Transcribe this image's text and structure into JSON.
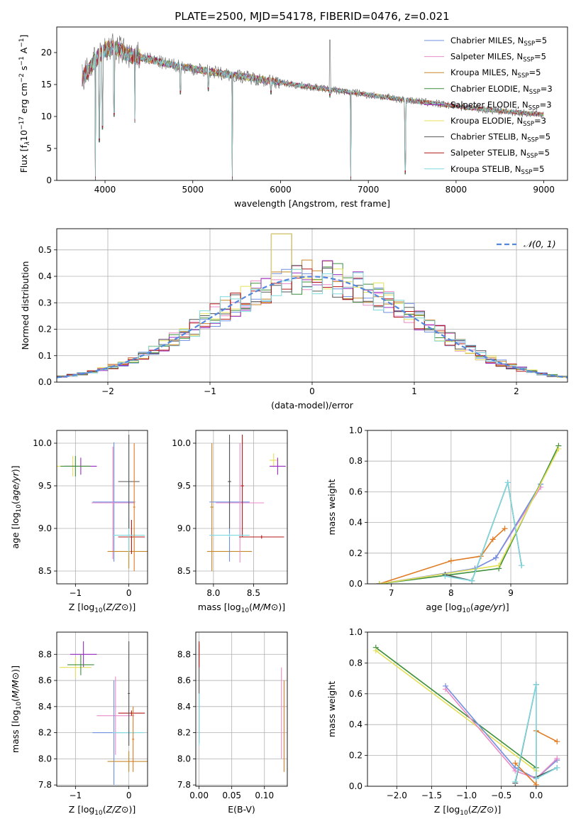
{
  "title": "PLATE=2500, MJD=54178, FIBERID=0476, z=0.021",
  "colors": {
    "Chabrier MILES": "#6f8fe0",
    "Salpeter MILES": "#e98bc8",
    "Kroupa MILES": "#c8892a",
    "Chabrier ELODIE": "#3d8f3d",
    "Salpeter ELODIE": "#9a2bc2",
    "Kroupa ELODIE": "#e5e05a",
    "Chabrier STELIB": "#555555",
    "Salpeter STELIB": "#b01818",
    "Kroupa STELIB": "#7fd9df",
    "orange": "#e07a20",
    "normal": "#5588dd",
    "grid": "#b0b0b0"
  },
  "chart_data": [
    {
      "id": "spectrum",
      "type": "line",
      "xlabel": "wavelength [Angstrom, rest frame]",
      "ylabel_parts": [
        "Flux [f",
        "λ",
        "10",
        "−17",
        " erg cm",
        "−2",
        " s",
        "−1",
        " A",
        "−1",
        "]"
      ],
      "xlim": [
        3450,
        9270
      ],
      "ylim": [
        0,
        24
      ],
      "xticks": [
        4000,
        5000,
        6000,
        7000,
        8000,
        9000
      ],
      "yticks": [
        0,
        5,
        10,
        15,
        20
      ],
      "grid": false,
      "legend_position": "right",
      "legend": [
        {
          "base": "Chabrier MILES, N",
          "sub": "SSP",
          "tail": "=5"
        },
        {
          "base": "Salpeter MILES, N",
          "sub": "SSP",
          "tail": "=5"
        },
        {
          "base": "Kroupa MILES, N",
          "sub": "SSP",
          "tail": "=5"
        },
        {
          "base": "Chabrier ELODIE, N",
          "sub": "SSP",
          "tail": "=3"
        },
        {
          "base": "Salpeter ELODIE, N",
          "sub": "SSP",
          "tail": "=3"
        },
        {
          "base": "Kroupa ELODIE, N",
          "sub": "SSP",
          "tail": "=3"
        },
        {
          "base": "Chabrier STELIB, N",
          "sub": "SSP",
          "tail": "=5"
        },
        {
          "base": "Salpeter STELIB, N",
          "sub": "SSP",
          "tail": "=5"
        },
        {
          "base": "Kroupa STELIB, N",
          "sub": "SSP",
          "tail": "=5"
        }
      ],
      "continuum": [
        [
          3740,
          16
        ],
        [
          3800,
          17
        ],
        [
          3900,
          19
        ],
        [
          4000,
          20.5
        ],
        [
          4100,
          20.8
        ],
        [
          4300,
          19.5
        ],
        [
          4500,
          19
        ],
        [
          4700,
          18.2
        ],
        [
          5000,
          17.5
        ],
        [
          5300,
          16.8
        ],
        [
          5600,
          16.2
        ],
        [
          6000,
          15.3
        ],
        [
          6400,
          14.5
        ],
        [
          6800,
          13.8
        ],
        [
          7200,
          13
        ],
        [
          7600,
          12.3
        ],
        [
          8000,
          11.6
        ],
        [
          8400,
          11
        ],
        [
          8800,
          10.5
        ],
        [
          9000,
          10.3
        ]
      ],
      "dips": [
        [
          3890,
          0
        ],
        [
          3935,
          6
        ],
        [
          3970,
          8
        ],
        [
          4102,
          10
        ],
        [
          4340,
          9
        ],
        [
          4861,
          13.5
        ],
        [
          5175,
          14
        ],
        [
          5450,
          0
        ],
        [
          5890,
          13.5
        ],
        [
          6563,
          13
        ],
        [
          6800,
          0
        ],
        [
          7420,
          1
        ]
      ],
      "spikes": [
        [
          6563,
          22
        ]
      ]
    },
    {
      "id": "residuals",
      "type": "bar",
      "xlabel": "(data-model)/error",
      "ylabel": "Normed distribution",
      "xlim": [
        -2.5,
        2.5
      ],
      "ylim": [
        0,
        0.58
      ],
      "xticks": [
        -2,
        -1,
        0,
        1,
        2
      ],
      "yticks": [
        0.0,
        0.1,
        0.2,
        0.3,
        0.4,
        0.5
      ],
      "grid": true,
      "legend_position": "top-right",
      "normal_label": "𝒩(0, 1)",
      "bin_width": 0.1
    },
    {
      "id": "age-vs-Z",
      "type": "scatter",
      "xlabel": "Z [log10(Z/Z⊙)]",
      "ylabel": "age  [log10(age/yr)]",
      "xlim": [
        -1.35,
        0.35
      ],
      "ylim": [
        8.35,
        10.15
      ],
      "xticks": [
        -1,
        0
      ],
      "yticks": [
        8.5,
        9.0,
        9.5,
        10.0
      ],
      "grid": true,
      "crosses": [
        {
          "series": "Kroupa ELODIE",
          "x": -1.05,
          "y": 9.73,
          "xerr": 0.3,
          "yerr": 0.12
        },
        {
          "series": "Salpeter ELODIE",
          "x": -0.9,
          "y": 9.73,
          "xerr": 0.3,
          "yerr": 0.1
        },
        {
          "series": "Chabrier ELODIE",
          "x": -1.0,
          "y": 9.73,
          "xerr": 0.28,
          "yerr": 0.12
        },
        {
          "series": "Chabrier MILES",
          "x": -0.28,
          "y": 9.31,
          "xerr": 0.4,
          "yerr": 0.7
        },
        {
          "series": "Salpeter MILES",
          "x": -0.3,
          "y": 9.3,
          "xerr": 0.4,
          "yerr": 0.66
        },
        {
          "series": "Kroupa MILES",
          "x": 0.0,
          "y": 8.73,
          "xerr": 0.4,
          "yerr": 0.2
        },
        {
          "series": "Salpeter STELIB",
          "x": 0.05,
          "y": 8.9,
          "xerr": 0.25,
          "yerr": 0.2
        },
        {
          "series": "Kroupa STELIB",
          "x": 0.0,
          "y": 8.92,
          "xerr": 0.3,
          "yerr": 0.2
        },
        {
          "series": "Chabrier STELIB",
          "x": 0.0,
          "y": 9.55,
          "xerr": 0.2,
          "yerr": 0.55
        },
        {
          "series": "orange",
          "x": 0.1,
          "y": 9.25,
          "xerr": 0.02,
          "yerr": 0.75
        }
      ]
    },
    {
      "id": "age-vs-mass",
      "type": "scatter",
      "xlabel": "mass [log10(M/M⊙)]",
      "ylabel": "",
      "xlim": [
        7.78,
        8.92
      ],
      "ylim": [
        8.35,
        10.15
      ],
      "xticks": [
        8.0,
        8.5
      ],
      "yticks": [
        8.5,
        9.0,
        9.5,
        10.0
      ],
      "grid": true,
      "crosses": [
        {
          "series": "Kroupa MILES",
          "x": 7.98,
          "y": 9.25,
          "xerr": 0.02,
          "yerr": 0.75
        },
        {
          "series": "Kroupa MILES",
          "x": 8.2,
          "y": 8.73,
          "xerr": 0.28,
          "yerr": 0.02
        },
        {
          "series": "Chabrier MILES",
          "x": 8.2,
          "y": 9.31,
          "xerr": 0.25,
          "yerr": 0.7
        },
        {
          "series": "Salpeter MILES",
          "x": 8.33,
          "y": 9.3,
          "xerr": 0.3,
          "yerr": 0.7
        },
        {
          "series": "Salpeter STELIB",
          "x": 8.36,
          "y": 9.5,
          "xerr": 0.02,
          "yerr": 0.6
        },
        {
          "series": "Salpeter STELIB",
          "x": 8.6,
          "y": 8.9,
          "xerr": 0.28,
          "yerr": 0.02
        },
        {
          "series": "Kroupa STELIB",
          "x": 8.2,
          "y": 8.92,
          "xerr": 0.25,
          "yerr": 0.02
        },
        {
          "series": "Chabrier STELIB",
          "x": 8.2,
          "y": 9.55,
          "xerr": 0.02,
          "yerr": 0.55
        },
        {
          "series": "Kroupa ELODIE",
          "x": 8.75,
          "y": 9.8,
          "xerr": 0.05,
          "yerr": 0.08
        },
        {
          "series": "Salpeter ELODIE",
          "x": 8.8,
          "y": 9.73,
          "xerr": 0.1,
          "yerr": 0.1
        }
      ]
    },
    {
      "id": "weight-vs-age",
      "type": "line",
      "xlabel": "age  [log10(age/yr)]",
      "ylabel": "mass weight",
      "xlim": [
        6.6,
        9.95
      ],
      "ylim": [
        0,
        1.0
      ],
      "xticks": [
        7,
        8,
        9
      ],
      "yticks": [
        0.0,
        0.2,
        0.4,
        0.6,
        0.8,
        1.0
      ],
      "grid": true,
      "series": [
        {
          "name": "Kroupa MILES",
          "x": [
            6.8,
            8.0,
            8.5,
            8.7,
            8.9
          ],
          "y": [
            0.0,
            0.15,
            0.18,
            0.29,
            0.36
          ]
        },
        {
          "name": "Salpeter MILES",
          "x": [
            6.8,
            8.4,
            8.75,
            9.5
          ],
          "y": [
            0.0,
            0.1,
            0.17,
            0.63
          ]
        },
        {
          "name": "Chabrier MILES",
          "x": [
            6.8,
            8.4,
            8.75,
            9.5
          ],
          "y": [
            0.0,
            0.1,
            0.17,
            0.65
          ]
        },
        {
          "name": "Chabrier ELODIE",
          "x": [
            6.8,
            8.8,
            9.8
          ],
          "y": [
            0.0,
            0.1,
            0.9
          ]
        },
        {
          "name": "Kroupa ELODIE",
          "x": [
            6.8,
            8.8,
            9.8
          ],
          "y": [
            0.0,
            0.12,
            0.88
          ]
        },
        {
          "name": "Chabrier STELIB",
          "x": [
            7.9,
            8.35,
            8.95,
            9.18
          ],
          "y": [
            0.06,
            0.02,
            0.66,
            0.12
          ]
        },
        {
          "name": "Kroupa STELIB",
          "x": [
            7.9,
            8.35,
            8.95,
            9.18
          ],
          "y": [
            0.05,
            0.02,
            0.66,
            0.12
          ]
        }
      ]
    },
    {
      "id": "mass-vs-Z",
      "type": "scatter",
      "xlabel": "Z [log10(Z/Z⊙)]",
      "ylabel": "mass [log10(M/M⊙)]",
      "xlim": [
        -1.35,
        0.35
      ],
      "ylim": [
        7.79,
        8.97
      ],
      "xticks": [
        -1,
        0
      ],
      "yticks": [
        7.8,
        8.0,
        8.2,
        8.4,
        8.6,
        8.8
      ],
      "grid": true,
      "crosses": [
        {
          "series": "Salpeter ELODIE",
          "x": -0.85,
          "y": 8.8,
          "xerr": 0.25,
          "yerr": 0.1
        },
        {
          "series": "Kroupa ELODIE",
          "x": -1.0,
          "y": 8.7,
          "xerr": 0.3,
          "yerr": 0.08
        },
        {
          "series": "Chabrier ELODIE",
          "x": -0.9,
          "y": 8.72,
          "xerr": 0.25,
          "yerr": 0.08
        },
        {
          "series": "Salpeter MILES",
          "x": -0.25,
          "y": 8.33,
          "xerr": 0.35,
          "yerr": 0.3
        },
        {
          "series": "Chabrier MILES",
          "x": -0.28,
          "y": 8.2,
          "xerr": 0.4,
          "yerr": 0.4
        },
        {
          "series": "Kroupa MILES",
          "x": 0.0,
          "y": 7.98,
          "xerr": 0.4,
          "yerr": 0.08
        },
        {
          "series": "Salpeter STELIB",
          "x": 0.05,
          "y": 8.35,
          "xerr": 0.25,
          "yerr": 0.02
        },
        {
          "series": "Kroupa STELIB",
          "x": 0.0,
          "y": 8.2,
          "xerr": 0.3,
          "yerr": 0.02
        },
        {
          "series": "Chabrier STELIB",
          "x": 0.0,
          "y": 8.5,
          "xerr": 0.02,
          "yerr": 0.4
        },
        {
          "series": "orange",
          "x": 0.08,
          "y": 8.15,
          "xerr": 0.02,
          "yerr": 0.25
        }
      ]
    },
    {
      "id": "mass-vs-EBV",
      "type": "scatter",
      "xlabel": "E(B-V)",
      "ylabel": "",
      "xlim": [
        -0.005,
        0.135
      ],
      "ylim": [
        7.79,
        8.97
      ],
      "xticks": [
        0.0,
        0.05,
        0.1
      ],
      "yticks": [
        7.8,
        8.0,
        8.2,
        8.4,
        8.6,
        8.8
      ],
      "grid": true,
      "crosses": [
        {
          "series": "Chabrier STELIB",
          "x": 0.0,
          "y": 8.5,
          "xerr": 0.0,
          "yerr": 0.38
        },
        {
          "series": "Salpeter STELIB",
          "x": 0.0,
          "y": 8.8,
          "xerr": 0.0,
          "yerr": 0.1
        },
        {
          "series": "Kroupa STELIB",
          "x": 0.0,
          "y": 8.3,
          "xerr": 0.0,
          "yerr": 0.2
        },
        {
          "series": "Salpeter MILES",
          "x": 0.126,
          "y": 8.35,
          "xerr": 0.0,
          "yerr": 0.35
        },
        {
          "series": "orange",
          "x": 0.13,
          "y": 8.25,
          "xerr": 0.0,
          "yerr": 0.35
        }
      ]
    },
    {
      "id": "weight-vs-Z",
      "type": "line",
      "xlabel": "Z [log10(Z/Z⊙)]",
      "ylabel": "mass weight",
      "xlim": [
        -2.42,
        0.45
      ],
      "ylim": [
        0,
        1.0
      ],
      "xticks": [
        -2.0,
        -1.5,
        -1.0,
        -0.5,
        0.0
      ],
      "yticks": [
        0.0,
        0.2,
        0.4,
        0.6,
        0.8,
        1.0
      ],
      "grid": true,
      "series": [
        {
          "name": "Chabrier ELODIE",
          "x": [
            -2.3,
            0.0
          ],
          "y": [
            0.9,
            0.12
          ]
        },
        {
          "name": "Kroupa ELODIE",
          "x": [
            -2.3,
            0.0
          ],
          "y": [
            0.88,
            0.1
          ]
        },
        {
          "name": "Chabrier MILES",
          "x": [
            -1.3,
            -0.3,
            0.0,
            0.3
          ],
          "y": [
            0.65,
            0.12,
            0.05,
            0.17
          ]
        },
        {
          "name": "Salpeter MILES",
          "x": [
            -1.3,
            -0.3,
            0.0,
            0.3
          ],
          "y": [
            0.63,
            0.1,
            0.05,
            0.18
          ]
        },
        {
          "name": "Kroupa MILES",
          "x": [
            -0.3,
            0.0,
            0.0,
            0.3
          ],
          "y": [
            0.15,
            0.01,
            0.36,
            0.29
          ]
        },
        {
          "name": "Chabrier STELIB",
          "x": [
            -0.3,
            0.0,
            0.0,
            0.3
          ],
          "y": [
            0.02,
            0.66,
            0.06,
            0.12
          ]
        },
        {
          "name": "Kroupa STELIB",
          "x": [
            -0.3,
            0.0,
            0.0,
            0.3
          ],
          "y": [
            0.03,
            0.66,
            0.05,
            0.12
          ]
        }
      ]
    }
  ]
}
